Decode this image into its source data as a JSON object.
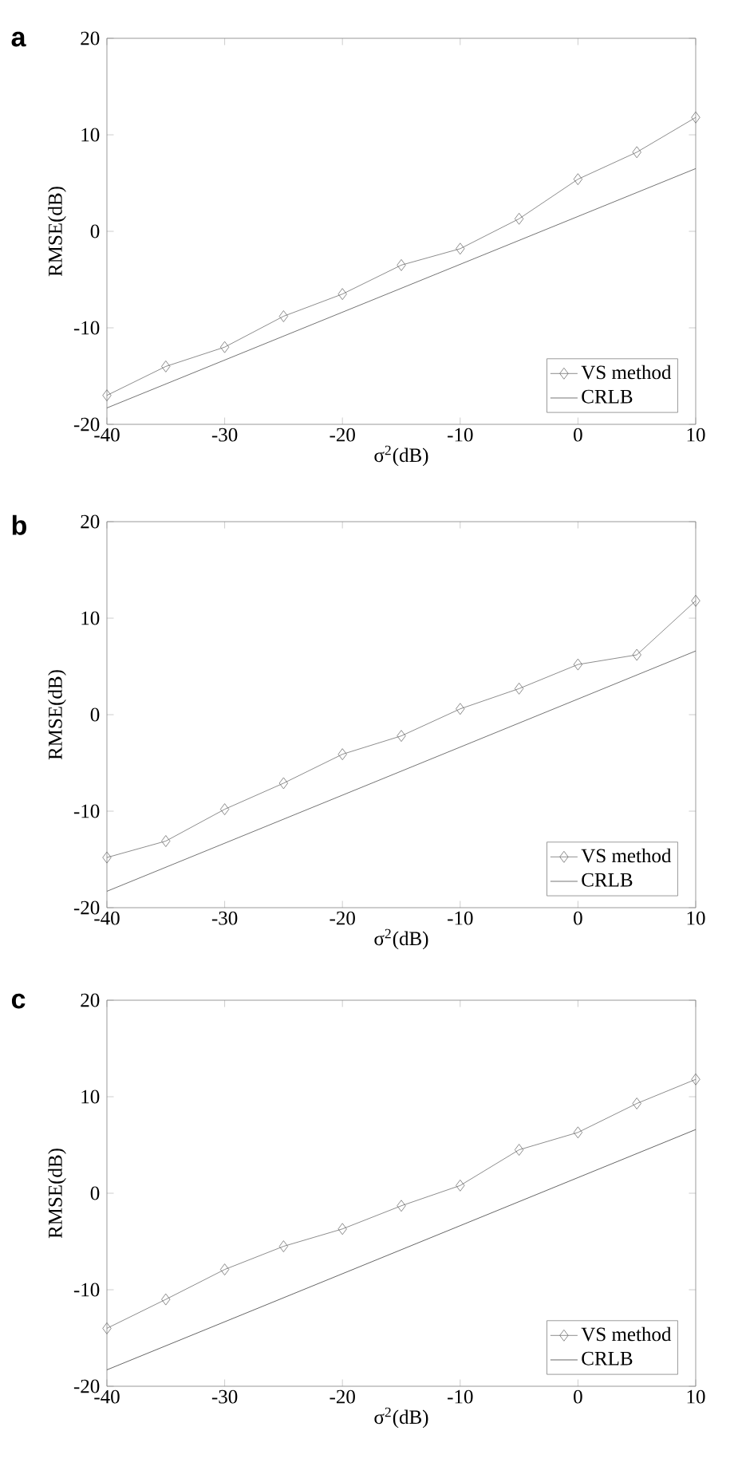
{
  "chart_data": [
    {
      "type": "line",
      "annotations": [
        "a"
      ],
      "xlabel": "σ$^{2}$(dB)",
      "ylabel": "RMSE(dB)",
      "xlim": [
        -40,
        10
      ],
      "ylim": [
        -20,
        20
      ],
      "xticks": [
        -40,
        -30,
        -20,
        -10,
        0,
        10
      ],
      "yticks": [
        -20,
        -10,
        0,
        10,
        20
      ],
      "legend": "bottom right",
      "grid": false,
      "series": [
        {
          "name": "VS method",
          "color": "#707070",
          "marker": "diamond",
          "x": [
            -40,
            -35,
            -30,
            -25,
            -20,
            -15,
            -10,
            -5,
            0,
            5,
            10
          ],
          "values": [
            -17.0,
            -14.0,
            -12.0,
            -8.8,
            -6.5,
            -3.5,
            -1.8,
            1.3,
            5.4,
            8.2,
            11.8
          ]
        },
        {
          "name": "CRLB",
          "color": "#505050",
          "marker": "none",
          "x": [
            -40,
            10
          ],
          "values": [
            -18.3,
            6.5
          ]
        }
      ]
    },
    {
      "type": "line",
      "annotations": [
        "b"
      ],
      "xlabel": "σ$^{2}$(dB)",
      "ylabel": "RMSE(dB)",
      "xlim": [
        -40,
        10
      ],
      "ylim": [
        -20,
        20
      ],
      "xticks": [
        -40,
        -30,
        -20,
        -10,
        0,
        10
      ],
      "yticks": [
        -20,
        -10,
        0,
        10,
        20
      ],
      "legend": "bottom right",
      "grid": false,
      "series": [
        {
          "name": "VS method",
          "color": "#707070",
          "marker": "diamond",
          "x": [
            -40,
            -35,
            -30,
            -25,
            -20,
            -15,
            -10,
            -5,
            0,
            5,
            10
          ],
          "values": [
            -14.8,
            -13.1,
            -9.8,
            -7.1,
            -4.1,
            -2.2,
            0.6,
            2.7,
            5.2,
            6.2,
            11.8
          ]
        },
        {
          "name": "CRLB",
          "color": "#505050",
          "marker": "none",
          "x": [
            -40,
            10
          ],
          "values": [
            -18.3,
            6.6
          ]
        }
      ]
    },
    {
      "type": "line",
      "annotations": [
        "c"
      ],
      "xlabel": "σ$^{2}$(dB)",
      "ylabel": "RMSE(dB)",
      "xlim": [
        -40,
        10
      ],
      "ylim": [
        -20,
        20
      ],
      "xticks": [
        -40,
        -30,
        -20,
        -10,
        0,
        10
      ],
      "yticks": [
        -20,
        -10,
        0,
        10,
        20
      ],
      "legend": "bottom right",
      "grid": false,
      "series": [
        {
          "name": "VS method",
          "color": "#707070",
          "marker": "diamond",
          "x": [
            -40,
            -35,
            -30,
            -25,
            -20,
            -15,
            -10,
            -5,
            0,
            5,
            10
          ],
          "values": [
            -14.0,
            -11.0,
            -7.9,
            -5.5,
            -3.7,
            -1.3,
            0.8,
            4.5,
            6.3,
            9.3,
            11.8
          ]
        },
        {
          "name": "CRLB",
          "color": "#404040",
          "marker": "none",
          "x": [
            -40,
            10
          ],
          "values": [
            -18.3,
            6.6
          ]
        }
      ]
    }
  ]
}
